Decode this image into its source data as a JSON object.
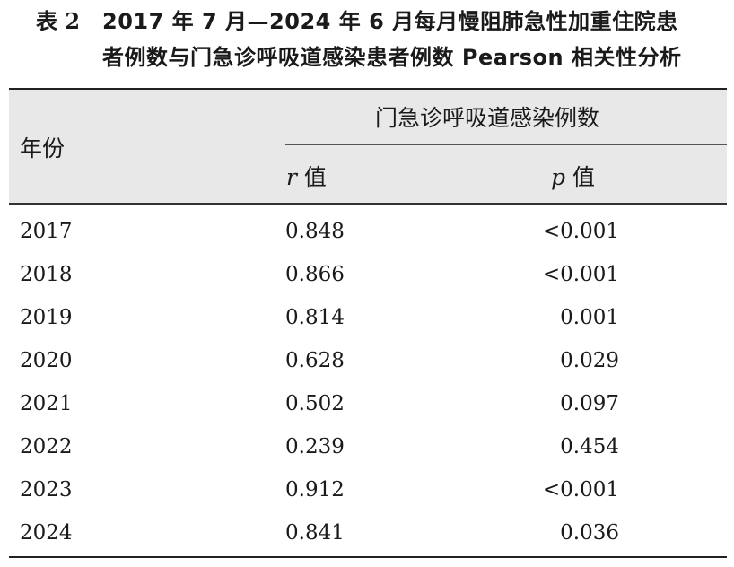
{
  "caption": {
    "label": "表 2",
    "line1": "2017 年 7 月—2024 年 6 月每月慢阻肺急性加重住院患",
    "line2": "者例数与门急诊呼吸道感染患者例数 Pearson 相关性分析"
  },
  "table": {
    "year_header": "年份",
    "group_header": "门急诊呼吸道感染例数",
    "r_var": "r",
    "r_suffix": " 值",
    "p_var": "p",
    "p_suffix": " 值"
  },
  "chart_data": {
    "type": "table",
    "title": "2017 年 7 月—2024 年 6 月每月慢阻肺急性加重住院患者例数与门急诊呼吸道感染患者例数 Pearson 相关性分析",
    "columns": [
      "年份",
      "r 值",
      "p 值"
    ],
    "rows": [
      {
        "year": "2017",
        "r": "0.848",
        "p": "<0.001"
      },
      {
        "year": "2018",
        "r": "0.866",
        "p": "<0.001"
      },
      {
        "year": "2019",
        "r": "0.814",
        "p": "0.001"
      },
      {
        "year": "2020",
        "r": "0.628",
        "p": "0.029"
      },
      {
        "year": "2021",
        "r": "0.502",
        "p": "0.097"
      },
      {
        "year": "2022",
        "r": "0.239",
        "p": "0.454"
      },
      {
        "year": "2023",
        "r": "0.912",
        "p": "<0.001"
      },
      {
        "year": "2024",
        "r": "0.841",
        "p": "0.036"
      }
    ]
  }
}
